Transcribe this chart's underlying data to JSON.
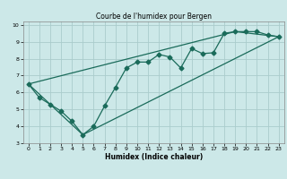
{
  "title": "Courbe de l'humidex pour Bergen",
  "xlabel": "Humidex (Indice chaleur)",
  "bg_color": "#cce8e8",
  "grid_color": "#aacccc",
  "line_color": "#1a6b5a",
  "xlim": [
    -0.5,
    23.5
  ],
  "ylim": [
    3,
    10.2
  ],
  "xticks": [
    0,
    1,
    2,
    3,
    4,
    5,
    6,
    7,
    8,
    9,
    10,
    11,
    12,
    13,
    14,
    15,
    16,
    17,
    18,
    19,
    20,
    21,
    22,
    23
  ],
  "yticks": [
    3,
    4,
    5,
    6,
    7,
    8,
    9,
    10
  ],
  "line1": {
    "x": [
      0,
      1,
      2,
      3,
      4,
      5,
      6,
      7,
      8,
      9,
      10,
      11,
      12,
      13,
      14,
      15,
      16,
      17,
      18,
      19,
      20,
      21,
      22,
      23
    ],
    "y": [
      6.5,
      5.7,
      5.3,
      4.9,
      4.3,
      3.5,
      4.0,
      5.2,
      6.3,
      7.45,
      7.8,
      7.8,
      8.25,
      8.1,
      7.45,
      8.6,
      8.3,
      8.35,
      9.5,
      9.6,
      9.6,
      9.6,
      9.4,
      9.3
    ]
  },
  "line2": {
    "x": [
      0,
      19,
      23
    ],
    "y": [
      6.5,
      9.6,
      9.3
    ]
  },
  "line3": {
    "x": [
      0,
      5,
      23
    ],
    "y": [
      6.5,
      3.5,
      9.3
    ]
  }
}
